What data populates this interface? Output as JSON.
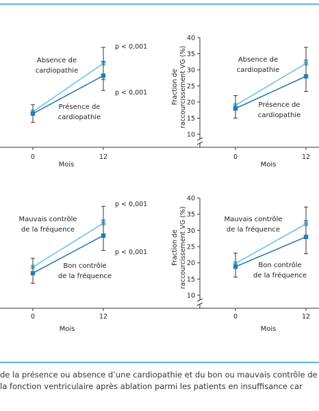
{
  "chart_data": [
    {
      "type": "line",
      "panel": "top-left",
      "x": [
        0,
        12
      ],
      "xticks": [
        "0",
        "12"
      ],
      "xlabel": "Mois",
      "ylabel": "",
      "ylim": [
        10,
        40
      ],
      "yticks": [],
      "axis_break": false,
      "series": [
        {
          "name": "Absence de cardiopathie",
          "color": "#6cc3ea",
          "values": [
            17,
            32
          ],
          "err_low": [
            null,
            27
          ],
          "err_high": [
            null,
            37
          ]
        },
        {
          "name": "Présence de cardiopathie",
          "color": "#2a7bb0",
          "values": [
            16.4,
            28.2
          ],
          "err_low": [
            13.7,
            23.6
          ],
          "err_high": [
            19.2,
            32.6
          ]
        }
      ],
      "annotations": [
        "p < 0,001",
        "p < 0,001"
      ]
    },
    {
      "type": "line",
      "panel": "top-right",
      "x": [
        0,
        12
      ],
      "xticks": [
        "0",
        "12"
      ],
      "xlabel": "Mois",
      "ylabel": "Fraction de raccourcissement VG (%)",
      "ylim": [
        10,
        40
      ],
      "yticks": [
        "10",
        "15",
        "20",
        "25",
        "30",
        "35",
        "40"
      ],
      "axis_break": true,
      "series": [
        {
          "name": "Absence de cardiopathie",
          "color": "#6cc3ea",
          "values": [
            19,
            32
          ],
          "err_low": [
            null,
            27.6
          ],
          "err_high": [
            null,
            37
          ]
        },
        {
          "name": "Présence de cardiopathie",
          "color": "#2a7bb0",
          "values": [
            18,
            28
          ],
          "err_low": [
            15,
            23.3
          ],
          "err_high": [
            22,
            33
          ]
        }
      ],
      "annotations": []
    },
    {
      "type": "line",
      "panel": "bottom-left",
      "x": [
        0,
        12
      ],
      "xticks": [
        "0",
        "12"
      ],
      "xlabel": "Mois",
      "ylabel": "",
      "ylim": [
        10,
        40
      ],
      "yticks": [],
      "axis_break": false,
      "series": [
        {
          "name": "Mauvais contrôle de la fréquence",
          "color": "#6cc3ea",
          "values": [
            18.5,
            32
          ],
          "err_low": [
            null,
            27.6
          ],
          "err_high": [
            null,
            37.2
          ]
        },
        {
          "name": "Bon contrôle de la fréquence",
          "color": "#2a7bb0",
          "values": [
            16.6,
            28.2
          ],
          "err_low": [
            13.5,
            23.6
          ],
          "err_high": [
            21.2,
            33
          ]
        }
      ],
      "annotations": [
        "p < 0,001",
        "p < 0,001"
      ]
    },
    {
      "type": "line",
      "panel": "bottom-right",
      "x": [
        0,
        12
      ],
      "xticks": [
        "0",
        "12"
      ],
      "xlabel": "Mois",
      "ylabel": "Fraction de raccourcissement VG (%)",
      "ylim": [
        10,
        40
      ],
      "yticks": [
        "10",
        "15",
        "20",
        "25",
        "30",
        "35",
        "40"
      ],
      "axis_break": true,
      "series": [
        {
          "name": "Mauvais contrôle de la fréquence",
          "color": "#6cc3ea",
          "values": [
            19.8,
            32
          ],
          "err_low": [
            null,
            27.6
          ],
          "err_high": [
            null,
            37.2
          ]
        },
        {
          "name": "Bon contrôle de la fréquence",
          "color": "#2a7bb0",
          "values": [
            18.8,
            28
          ],
          "err_low": [
            15.6,
            22.8
          ],
          "err_high": [
            23,
            33
          ]
        }
      ],
      "annotations": []
    }
  ],
  "caption": {
    "line1": "de la présence ou absence d’une cardiopathie et du bon ou mauvais contrôle de",
    "line2": "la fonction ventriculaire après ablation parmi les patients en insuffisance car"
  },
  "colors": {
    "rule": "#5bb7df",
    "axis": "#333333"
  }
}
